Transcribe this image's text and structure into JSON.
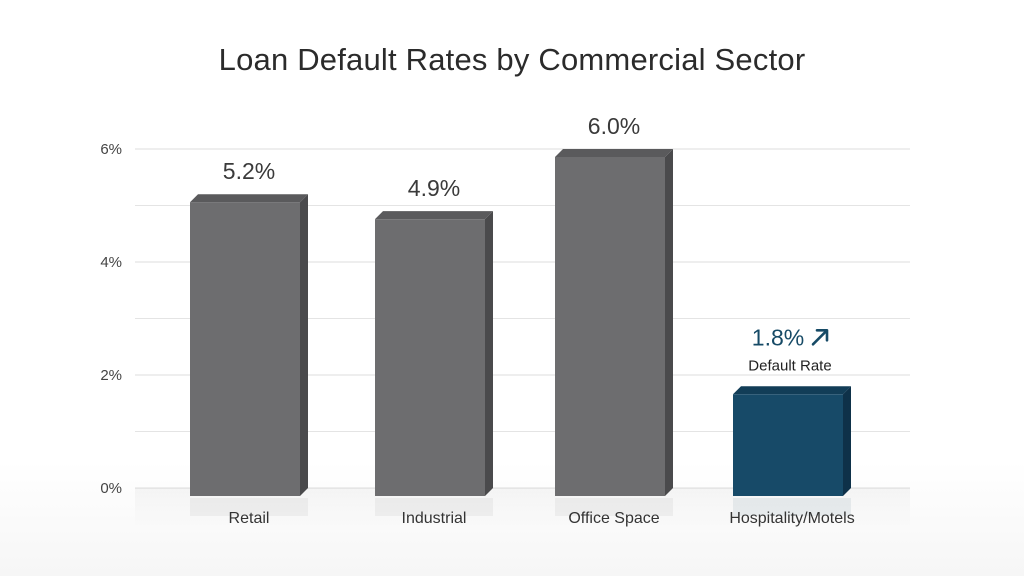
{
  "chart_data": {
    "type": "bar",
    "title": "Loan Default Rates by Commercial Sector",
    "xlabel": "",
    "ylabel": "",
    "categories": [
      "Retail",
      "Industrial",
      "Office Space",
      "Hospitality/Motels"
    ],
    "values": [
      5.2,
      4.9,
      6.0,
      1.8
    ],
    "value_labels": [
      "5.2%",
      "4.9%",
      "6.0%",
      "1.8%"
    ],
    "ylim": [
      0,
      6
    ],
    "y_ticks": [
      0,
      2,
      4,
      6
    ],
    "y_tick_labels": [
      "0%",
      "2%",
      "4%",
      "6%"
    ],
    "grid": true,
    "highlight": {
      "index": 3,
      "value_label": "1.8%",
      "trend_icon": "arrow-up-right-icon",
      "sub_label": "Default Rate"
    },
    "colors": {
      "bar": "#6d6d6f",
      "bar_top": "#5a5a5c",
      "bar_side": "#4a4a4c",
      "highlight_bar": "#174a68",
      "highlight_top": "#123d57",
      "highlight_side": "#0e3149",
      "highlight_text": "#164a66",
      "grid": "#e4e4e4"
    }
  }
}
